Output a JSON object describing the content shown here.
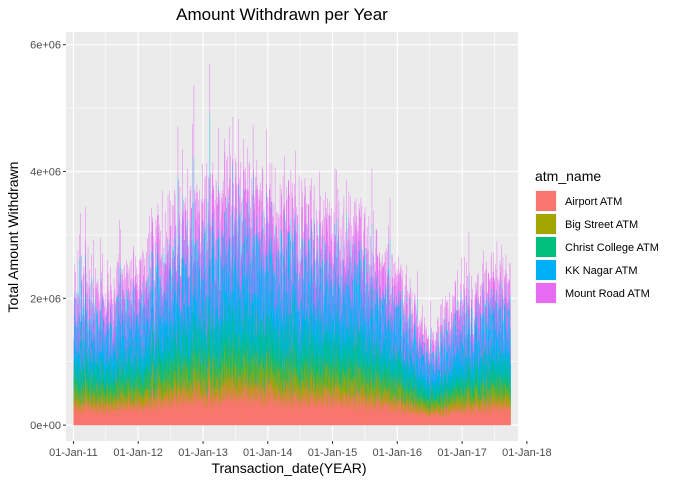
{
  "chart_data": {
    "type": "bar",
    "stacked": true,
    "title": "Amount Withdrawn per Year",
    "xlabel": "Transaction_date(YEAR)",
    "ylabel": "Total Amount Withdrawn",
    "x_range": [
      "2010-11-20",
      "2017-11-12"
    ],
    "x_ticks": [
      "01-Jan-11",
      "01-Jan-12",
      "01-Jan-13",
      "01-Jan-14",
      "01-Jan-15",
      "01-Jan-16",
      "01-Jan-17",
      "01-Jan-18"
    ],
    "x_tick_dates": [
      "2011-01-01",
      "2012-01-01",
      "2013-01-01",
      "2014-01-01",
      "2015-01-01",
      "2016-01-01",
      "2017-01-01",
      "2018-01-01"
    ],
    "data_start": "2011-01-01",
    "data_end": "2017-09-30",
    "ylim": [
      -250000,
      6200000
    ],
    "y_ticks": [
      0,
      2000000,
      4000000,
      6000000
    ],
    "y_tick_labels": [
      "0e+00",
      "2e+06",
      "4e+06",
      "6e+06"
    ],
    "grid": true,
    "legend_position": "right",
    "legend_title": "atm_name",
    "series": [
      {
        "name": "Airport ATM",
        "color": "#F8766D"
      },
      {
        "name": "Big Street ATM",
        "color": "#A3A500"
      },
      {
        "name": "Christ College ATM",
        "color": "#00BF7D"
      },
      {
        "name": "KK Nagar ATM",
        "color": "#00B0F6"
      },
      {
        "name": "Mount Road ATM",
        "color": "#E76BF3"
      }
    ],
    "approx_total_profile": [
      {
        "date": "2011-01-01",
        "total": 2200000
      },
      {
        "date": "2011-07-01",
        "total": 2000000
      },
      {
        "date": "2012-01-01",
        "total": 2300000
      },
      {
        "date": "2012-07-01",
        "total": 3200000
      },
      {
        "date": "2013-01-01",
        "total": 3300000
      },
      {
        "date": "2013-07-01",
        "total": 3600000
      },
      {
        "date": "2014-01-01",
        "total": 3400000
      },
      {
        "date": "2014-07-01",
        "total": 3300000
      },
      {
        "date": "2015-01-01",
        "total": 3100000
      },
      {
        "date": "2015-07-01",
        "total": 2800000
      },
      {
        "date": "2016-01-01",
        "total": 2300000
      },
      {
        "date": "2016-07-01",
        "total": 1300000
      },
      {
        "date": "2017-01-01",
        "total": 2000000
      },
      {
        "date": "2017-09-30",
        "total": 2300000
      }
    ]
  }
}
